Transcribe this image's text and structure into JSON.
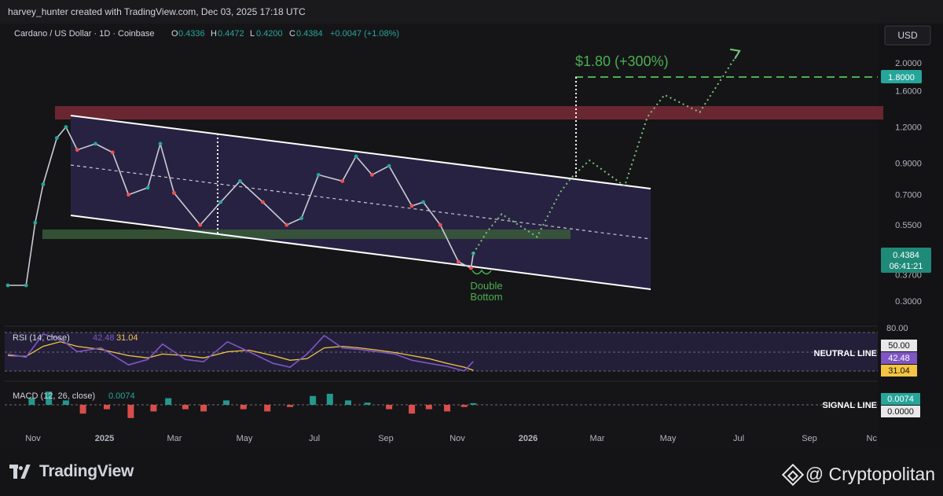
{
  "header": {
    "attribution": "harvey_hunter created with TradingView.com, Dec 03, 2025 17:18 UTC"
  },
  "legend": {
    "symbol": "Cardano / US Dollar · 1D · Coinbase",
    "o_label": "O",
    "o_value": "0.4336",
    "h_label": "H",
    "h_value": "0.4472",
    "l_label": "L",
    "l_value": "0.4200",
    "c_label": "C",
    "c_value": "0.4384",
    "change": "+0.0047 (+1.08%)"
  },
  "currency_button": "USD",
  "annotations": {
    "target": "$1.80 (+300%)",
    "pattern_line1": "Double",
    "pattern_line2": "Bottom",
    "neutral_line": "NEUTRAL LINE",
    "signal_line": "SIGNAL LINE"
  },
  "price_badges": {
    "target": "1.8000",
    "last": "0.4384",
    "countdown": "06:41:21"
  },
  "rsi": {
    "label": "RSI (14, close)",
    "value": "42.48",
    "ma_value": "31.04",
    "top_tick": "80.00",
    "neutral_badge": "50.00"
  },
  "macd": {
    "label": "MACD (12, 26, close)",
    "value": "0.0074",
    "zero_badge": "0.0000"
  },
  "colors": {
    "background": "#151518",
    "bull": "#26a69a",
    "bear": "#ef5350",
    "channel_fill": "#2a2347",
    "resistance_zone": "#7a2a36",
    "support_zone": "#3a5a3a",
    "target_green": "#4caf50",
    "rsi_line": "#7e57c2",
    "rsi_ma": "#f5c542"
  },
  "chart_data": {
    "type": "line",
    "title": "Cardano / US Dollar · 1D · Coinbase",
    "scale": "log",
    "y_ticks": [
      "2.0000",
      "1.6000",
      "1.2000",
      "0.9000",
      "0.7000",
      "0.5500",
      "0.3700",
      "0.3000"
    ],
    "x_ticks": [
      "Nov",
      "2025",
      "Mar",
      "May",
      "Jul",
      "Sep",
      "Nov",
      "2026",
      "Mar",
      "May",
      "Jul",
      "Sep",
      "Nc"
    ],
    "ylim": [
      0.25,
      2.4
    ],
    "series": [
      {
        "x": [
          "2024-10-20",
          "2024-11-05",
          "2024-11-13",
          "2024-11-20",
          "2024-12-02",
          "2024-12-10",
          "2024-12-20",
          "2025-01-05",
          "2025-01-20",
          "2025-02-03",
          "2025-02-20",
          "2025-03-03",
          "2025-03-15",
          "2025-04-07",
          "2025-04-25",
          "2025-05-12",
          "2025-06-01",
          "2025-06-22",
          "2025-07-05",
          "2025-07-20",
          "2025-08-10",
          "2025-08-22",
          "2025-09-05",
          "2025-09-20",
          "2025-10-10",
          "2025-10-20",
          "2025-11-04",
          "2025-11-20",
          "2025-12-01",
          "2025-12-03"
        ],
        "y": [
          0.34,
          0.34,
          0.56,
          0.76,
          1.1,
          1.2,
          1.0,
          1.05,
          0.98,
          0.7,
          0.74,
          1.05,
          0.71,
          0.55,
          0.66,
          0.78,
          0.66,
          0.55,
          0.58,
          0.82,
          0.78,
          0.95,
          0.82,
          0.88,
          0.64,
          0.66,
          0.55,
          0.41,
          0.39,
          0.4384
        ]
      },
      {
        "x": [
          "2025-12-03",
          "2025-12-15",
          "2025-12-28",
          "2026-01-28",
          "2026-02-17",
          "2026-02-27",
          "2026-03-15",
          "2026-04-15",
          "2026-05-05",
          "2026-05-20",
          "2026-06-20",
          "2026-07-25"
        ],
        "y": [
          0.4384,
          0.52,
          0.6,
          0.5,
          0.71,
          0.8,
          0.92,
          0.75,
          1.3,
          1.55,
          1.35,
          2.2
        ]
      }
    ],
    "rsi": {
      "ylim": [
        20,
        80
      ],
      "x": [
        "2024-10-20",
        "2024-11-05",
        "2024-11-20",
        "2024-12-05",
        "2024-12-20",
        "2025-01-10",
        "2025-02-03",
        "2025-02-20",
        "2025-03-05",
        "2025-03-25",
        "2025-04-10",
        "2025-05-01",
        "2025-05-20",
        "2025-06-10",
        "2025-06-25",
        "2025-07-10",
        "2025-07-25",
        "2025-08-10",
        "2025-08-25",
        "2025-09-10",
        "2025-09-25",
        "2025-10-10",
        "2025-10-25",
        "2025-11-10",
        "2025-11-25",
        "2025-12-03"
      ],
      "y": [
        52,
        48,
        78,
        72,
        55,
        60,
        38,
        45,
        65,
        45,
        42,
        68,
        55,
        40,
        35,
        52,
        76,
        60,
        58,
        55,
        52,
        44,
        40,
        36,
        30,
        42.48
      ],
      "ma_y": [
        50,
        49,
        62,
        68,
        62,
        58,
        50,
        47,
        52,
        50,
        47,
        55,
        57,
        50,
        44,
        46,
        60,
        62,
        60,
        57,
        54,
        50,
        46,
        40,
        35,
        31.04
      ]
    },
    "macd_histogram": {
      "x": [
        "2024-11-10",
        "2024-11-25",
        "2024-12-10",
        "2024-12-25",
        "2025-01-15",
        "2025-02-05",
        "2025-02-25",
        "2025-03-10",
        "2025-03-25",
        "2025-04-10",
        "2025-04-30",
        "2025-05-15",
        "2025-06-05",
        "2025-06-25",
        "2025-07-15",
        "2025-07-30",
        "2025-08-15",
        "2025-09-01",
        "2025-09-20",
        "2025-10-10",
        "2025-10-25",
        "2025-11-10",
        "2025-11-25",
        "2025-12-03"
      ],
      "y": [
        0.03,
        0.06,
        0.02,
        -0.04,
        -0.02,
        -0.06,
        -0.03,
        0.03,
        -0.02,
        -0.03,
        0.02,
        -0.02,
        -0.03,
        -0.01,
        0.04,
        0.05,
        0.02,
        0.01,
        -0.02,
        -0.04,
        -0.02,
        -0.03,
        -0.01,
        0.0074
      ]
    }
  }
}
